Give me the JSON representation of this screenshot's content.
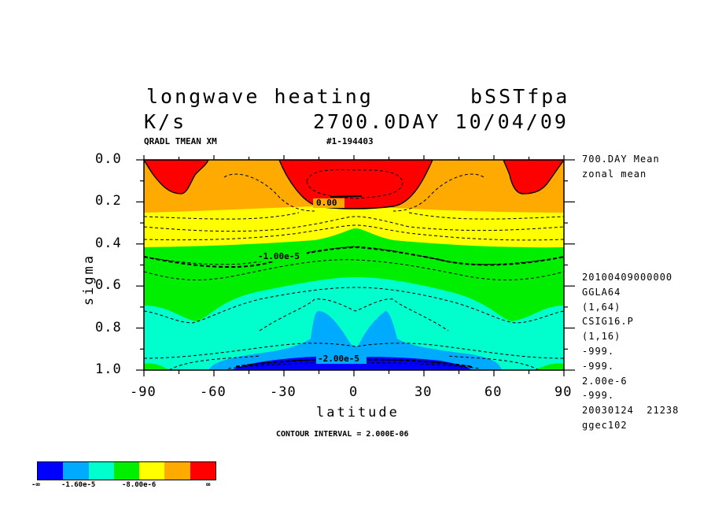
{
  "header": {
    "title": "longwave heating",
    "run": "bSSTfpa",
    "units": "K/s",
    "time": "2700.0DAY 10/04/09",
    "variable": "QRADL TMEAN XM",
    "id": "#1-194403"
  },
  "sidebar": {
    "lines_top": [
      "700.DAY Mean",
      "zonal mean"
    ],
    "lines_bottom": [
      "20100409000000",
      "GGLA64",
      "(1,64)",
      "CSIG16.P",
      "(1,16)",
      "-999.",
      "-999.",
      "2.00e-6",
      "-999.",
      "20030124  21238",
      "ggec102"
    ]
  },
  "footer": {
    "contour_interval": "CONTOUR INTERVAL = 2.000E-06"
  },
  "legend": {
    "colors": [
      "#0000ff",
      "#00aaff",
      "#00ffcc",
      "#00ee00",
      "#ffff00",
      "#ffaa00",
      "#ff0000"
    ],
    "labels": [
      "-∞",
      "-1.60e-5",
      "-8.00e-6",
      "∞"
    ]
  },
  "chart_data": {
    "type": "contour",
    "xlabel": "latitude",
    "ylabel": "sigma",
    "xlim": [
      -90,
      90
    ],
    "ylim": [
      1.0,
      0.0
    ],
    "x_ticks": [
      "-90",
      "-60",
      "-30",
      "0",
      "30",
      "60",
      "90"
    ],
    "y_ticks": [
      "0.0",
      "0.2",
      "0.4",
      "0.6",
      "0.8",
      "1.0"
    ],
    "contour_labels": [
      "0.00",
      "-1.00e-5",
      "-2.00e-5"
    ],
    "contour_interval": 2e-06,
    "color_levels": [
      "-inf",
      "-1.60e-5",
      "-8.00e-6",
      "inf"
    ]
  }
}
